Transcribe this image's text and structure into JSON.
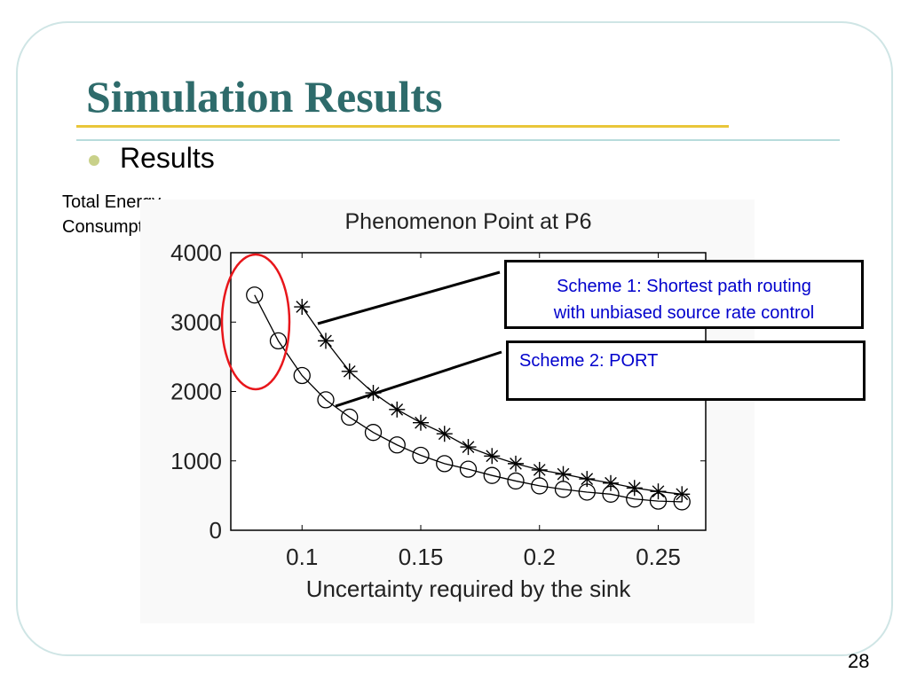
{
  "slide": {
    "title": "Simulation Results",
    "bullet": "Results",
    "ylabel_line1": "Total Energy",
    "ylabel_line2": "Consumption (J)",
    "page_number": "28",
    "callout1_line1": "Scheme 1: Shortest path routing",
    "callout1_line2": "with unbiased source rate control",
    "callout2": "Scheme 2: PORT"
  },
  "colors": {
    "title": "#2e6b6b",
    "frame": "#cfe5e5",
    "gold_rule": "#e9c63a",
    "callout_text": "#0000cc",
    "highlight_ellipse": "#e8161b"
  },
  "chart_data": {
    "type": "line",
    "title": "Phenomenon Point at P6",
    "xlabel": "Uncertainty required by the sink",
    "ylabel": "",
    "xlim": [
      0.07,
      0.27
    ],
    "ylim": [
      0,
      4000
    ],
    "xticks": [
      0.1,
      0.15,
      0.2,
      0.25
    ],
    "xtick_labels": [
      "0.1",
      "0.15",
      "0.2",
      "0.25"
    ],
    "yticks": [
      0,
      1000,
      2000,
      3000,
      4000
    ],
    "ytick_labels": [
      "0",
      "1000",
      "2000",
      "3000",
      "4000"
    ],
    "grid": false,
    "series": [
      {
        "marker": "asterisk",
        "x": [
          0.1,
          0.11,
          0.12,
          0.13,
          0.14,
          0.15,
          0.16,
          0.17,
          0.18,
          0.19,
          0.2,
          0.21,
          0.22,
          0.23,
          0.24,
          0.25,
          0.26
        ],
        "values": [
          3220,
          2730,
          2290,
          1980,
          1740,
          1550,
          1390,
          1200,
          1070,
          960,
          870,
          810,
          740,
          680,
          610,
          560,
          520
        ]
      },
      {
        "marker": "circle",
        "x": [
          0.08,
          0.09,
          0.1,
          0.11,
          0.12,
          0.13,
          0.14,
          0.15,
          0.16,
          0.17,
          0.18,
          0.19,
          0.2,
          0.21,
          0.22,
          0.23,
          0.24,
          0.25,
          0.26
        ],
        "values": [
          3390,
          2730,
          2230,
          1880,
          1630,
          1410,
          1230,
          1080,
          960,
          880,
          790,
          710,
          640,
          590,
          550,
          520,
          450,
          420,
          410
        ]
      }
    ]
  }
}
